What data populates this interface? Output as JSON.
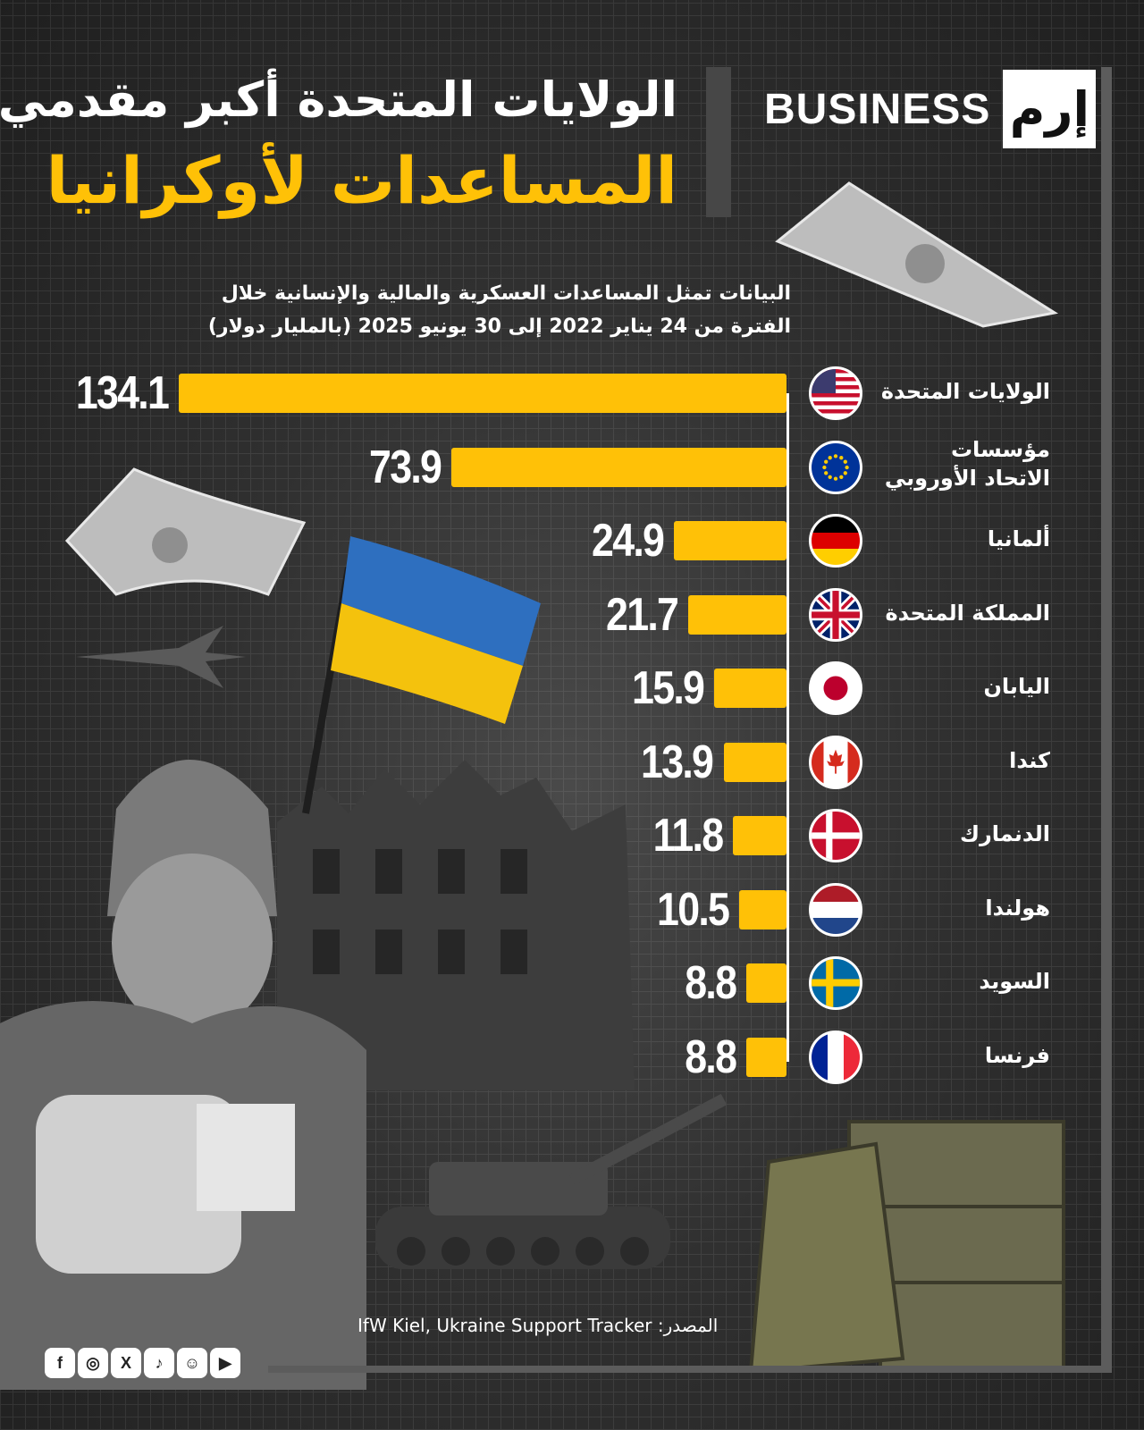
{
  "header": {
    "brand": "BUSINESS",
    "logo": "إرم",
    "title_line1": "الولايات المتحدة أكبر مقدمي",
    "title_line2": "المساعدات لأوكرانيا"
  },
  "note": "البيانات تمثل المساعدات العسكرية والمالية والإنسانية خلال الفترة من 24 يناير 2022 إلى 30 يونيو 2025 (بالمليار دولار)",
  "footer": {
    "source": "المصدر: IfW Kiel, Ukraine Support Tracker",
    "social_icons": [
      "facebook-icon",
      "instagram-icon",
      "x-icon",
      "tiktok-icon",
      "snapchat-icon",
      "youtube-icon"
    ]
  },
  "colors": {
    "bar": "#ffc107",
    "title_accent": "#ffc107",
    "background": "#2e2e2e"
  },
  "chart_data": {
    "type": "bar",
    "orientation": "horizontal",
    "categories": [
      "الولايات المتحدة",
      "مؤسسات الاتحاد الأوروبي",
      "ألمانيا",
      "المملكة المتحدة",
      "اليابان",
      "كندا",
      "الدنمارك",
      "هولندا",
      "السويد",
      "فرنسا"
    ],
    "values": [
      134.1,
      73.9,
      24.9,
      21.7,
      15.9,
      13.9,
      11.8,
      10.5,
      8.8,
      8.8
    ],
    "flags": [
      "us-flag-icon",
      "eu-flag-icon",
      "germany-flag-icon",
      "uk-flag-icon",
      "japan-flag-icon",
      "canada-flag-icon",
      "denmark-flag-icon",
      "netherlands-flag-icon",
      "sweden-flag-icon",
      "france-flag-icon"
    ],
    "xlim": [
      0,
      134.1
    ],
    "grid": false,
    "legend": "none"
  }
}
